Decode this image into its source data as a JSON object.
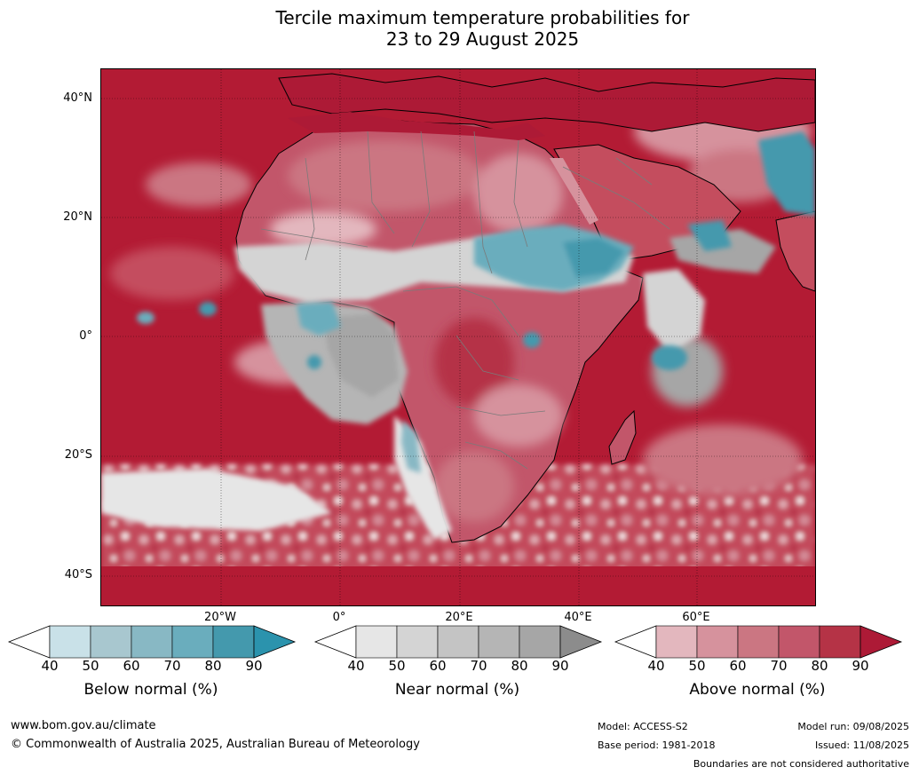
{
  "title": {
    "line1": "Tercile maximum temperature probabilities for",
    "line2": "23 to 29 August 2025"
  },
  "map": {
    "lat_labels": [
      "40°N",
      "20°N",
      "0°",
      "20°S",
      "40°S"
    ],
    "lon_labels": [
      "20°W",
      "0°",
      "20°E",
      "40°E",
      "60°E"
    ],
    "ocean_color": "#b31b34",
    "land_warm_color": "#c44d5e",
    "cool_color": "#4499ad",
    "neutral_color": "#a6a6a6"
  },
  "legends": [
    {
      "label": "Below normal (%)",
      "ticks": [
        "40",
        "50",
        "60",
        "70",
        "80",
        "90"
      ],
      "colors": [
        "#ffffff",
        "#c9e1e8",
        "#a8c7cf",
        "#88b8c4",
        "#6aadbd",
        "#4499ad",
        "#2b93ad"
      ]
    },
    {
      "label": "Near normal (%)",
      "ticks": [
        "40",
        "50",
        "60",
        "70",
        "80",
        "90"
      ],
      "colors": [
        "#ffffff",
        "#e6e6e6",
        "#d4d4d4",
        "#c4c4c4",
        "#b5b5b5",
        "#a6a6a6",
        "#8c8c8c"
      ]
    },
    {
      "label": "Above normal (%)",
      "ticks": [
        "40",
        "50",
        "60",
        "70",
        "80",
        "90"
      ],
      "colors": [
        "#ffffff",
        "#e3b7be",
        "#d6929d",
        "#cb7682",
        "#c2566a",
        "#b53346",
        "#ad1a36"
      ]
    }
  ],
  "footer": {
    "website": "www.bom.gov.au/climate",
    "copyright": "© Commonwealth of Australia 2025, Australian Bureau of Meteorology",
    "model": "Model: ACCESS-S2",
    "base_period": "Base period: 1981-2018",
    "model_run": "Model run: 09/08/2025",
    "issued": "Issued: 11/08/2025",
    "disclaimer": "Boundaries are not considered authoritative"
  }
}
